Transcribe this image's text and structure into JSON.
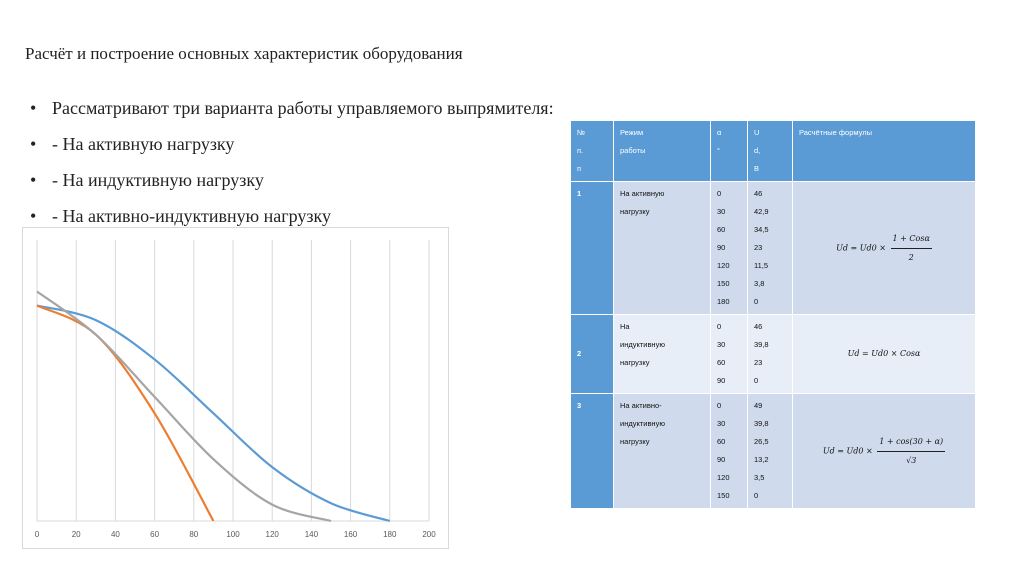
{
  "title": "Расчёт и построение основных характеристик оборудования",
  "bullets": [
    {
      "marker": "•",
      "text": "Рассматривают три варианта работы управляемого выпрямителя:"
    },
    {
      "marker": "•",
      "text": "- На активную нагрузку"
    },
    {
      "marker": "•",
      "text": "- На индуктивную нагрузку"
    },
    {
      "marker": "•",
      "text": "- На активно-индуктивную нагрузку"
    }
  ],
  "table": {
    "headers": {
      "num": [
        "№",
        "п.",
        "п"
      ],
      "mode": [
        "Режим",
        "работы"
      ],
      "alpha": [
        "α",
        "°"
      ],
      "ud": [
        "U",
        "d,",
        "В"
      ],
      "formula": "Расчётные формулы"
    },
    "rows": [
      {
        "num": "1",
        "mode": [
          "На      активную",
          "нагрузку"
        ],
        "alpha": [
          "0",
          "30",
          "60",
          "90",
          "120",
          "150",
          "180"
        ],
        "ud": [
          "46",
          "42,9",
          "34,5",
          "23",
          "11,5",
          "3,8",
          "0"
        ],
        "formula": {
          "lhs": "Ud = Ud0 ×",
          "num": "1 + Cosα",
          "den": "2"
        }
      },
      {
        "num": "2",
        "mode": [
          "На",
          "индуктивную",
          "нагрузку"
        ],
        "alpha": [
          "0",
          "30",
          "60",
          "90"
        ],
        "ud": [
          "46",
          "39,8",
          "23",
          "0"
        ],
        "formula": {
          "text": "Ud = Ud0 × Cosα"
        }
      },
      {
        "num": "3",
        "mode": [
          "На      активно-",
          "индуктивную",
          "нагрузку"
        ],
        "alpha": [
          "0",
          "30",
          "60",
          "90",
          "120",
          "150"
        ],
        "ud": [
          "49",
          "39,8",
          "26,5",
          "13,2",
          "3,5",
          "0"
        ],
        "formula": {
          "lhs": "Ud = Ud0 ×",
          "num": "1 + cos(30 + α)",
          "den": "√3"
        }
      }
    ]
  },
  "chart_data": {
    "type": "line",
    "x_ticks": [
      "0",
      "20",
      "40",
      "60",
      "80",
      "100",
      "120",
      "140",
      "160",
      "180",
      "200"
    ],
    "xlim": [
      0,
      200
    ],
    "ylim": [
      0,
      60
    ],
    "grid": "vertical",
    "series": [
      {
        "color": "#5b9bd5",
        "x": [
          0,
          30,
          60,
          90,
          120,
          150,
          180
        ],
        "y": [
          46,
          42.9,
          34.5,
          23,
          11.5,
          3.8,
          0
        ]
      },
      {
        "color": "#ed7d31",
        "x": [
          0,
          30,
          60,
          90
        ],
        "y": [
          46,
          39.8,
          23,
          0
        ]
      },
      {
        "color": "#a5a5a5",
        "x": [
          0,
          30,
          60,
          90,
          120,
          150
        ],
        "y": [
          49,
          39.8,
          26.5,
          13.2,
          3.5,
          0
        ]
      }
    ]
  }
}
